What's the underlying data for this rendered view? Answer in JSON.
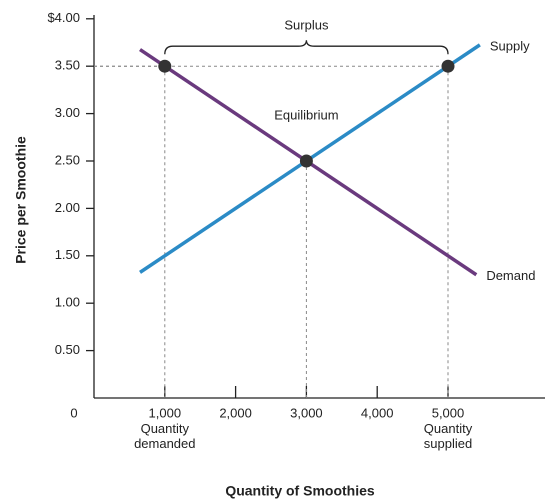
{
  "chart_data": {
    "type": "line",
    "x_label": "Quantity of Smoothies",
    "y_label": "Price per Smoothie",
    "xlim": [
      0,
      6370
    ],
    "ylim": [
      0,
      4.04
    ],
    "xticks": [
      {
        "value": 1000,
        "label": "1,000"
      },
      {
        "value": 2000,
        "label": "2,000"
      },
      {
        "value": 3000,
        "label": "3,000"
      },
      {
        "value": 4000,
        "label": "4,000"
      },
      {
        "value": 5000,
        "label": "5,000"
      }
    ],
    "yticks": [
      0,
      {
        "value": 0.5,
        "label": "0.50"
      },
      {
        "value": 1,
        "label": "1.00"
      },
      {
        "value": 1.5,
        "label": "1.50"
      },
      {
        "value": 2,
        "label": "2.00"
      },
      {
        "value": 2.5,
        "label": "2.50"
      },
      {
        "value": 3,
        "label": "3.00"
      },
      {
        "value": 3.5,
        "label": "3.50"
      },
      {
        "value": 4,
        "label": "$4.00"
      }
    ],
    "series": [
      {
        "name": "Supply",
        "color": "#2b8bc6",
        "x": [
          650,
          5450
        ],
        "values": [
          1.325,
          3.725
        ]
      },
      {
        "name": "Demand",
        "color": "#6a3a7e",
        "x": [
          650,
          5400
        ],
        "values": [
          3.675,
          1.3
        ]
      }
    ],
    "points": {
      "color": "#333333",
      "x": [
        1000,
        3000,
        5000
      ],
      "values": [
        3.5,
        2.5,
        3.5
      ]
    },
    "annotations": {
      "surplus": "Surplus",
      "equilibrium": "Equilibrium",
      "quantity_demanded": "Quantity demanded",
      "quantity_supplied": "Quantity supplied"
    }
  }
}
